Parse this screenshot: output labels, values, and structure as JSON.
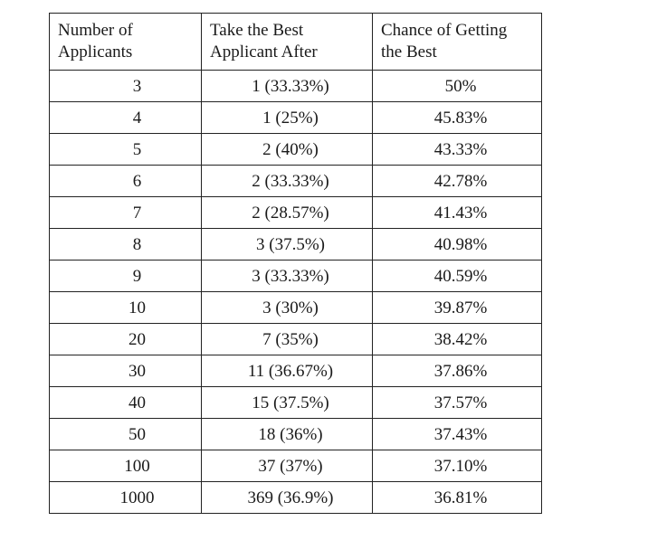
{
  "table": {
    "headers": [
      [
        "Number of",
        "Applicants"
      ],
      [
        "Take the Best",
        "Applicant After"
      ],
      [
        "Chance of Getting",
        "the Best"
      ]
    ],
    "rows": [
      [
        "3",
        "1 (33.33%)",
        "50%"
      ],
      [
        "4",
        "1 (25%)",
        "45.83%"
      ],
      [
        "5",
        "2 (40%)",
        "43.33%"
      ],
      [
        "6",
        "2 (33.33%)",
        "42.78%"
      ],
      [
        "7",
        "2 (28.57%)",
        "41.43%"
      ],
      [
        "8",
        "3 (37.5%)",
        "40.98%"
      ],
      [
        "9",
        "3 (33.33%)",
        "40.59%"
      ],
      [
        "10",
        "3 (30%)",
        "39.87%"
      ],
      [
        "20",
        "7 (35%)",
        "38.42%"
      ],
      [
        "30",
        "11 (36.67%)",
        "37.86%"
      ],
      [
        "40",
        "15 (37.5%)",
        "37.57%"
      ],
      [
        "50",
        "18 (36%)",
        "37.43%"
      ],
      [
        "100",
        "37 (37%)",
        "37.10%"
      ],
      [
        "1000",
        "369 (36.9%)",
        "36.81%"
      ]
    ]
  }
}
